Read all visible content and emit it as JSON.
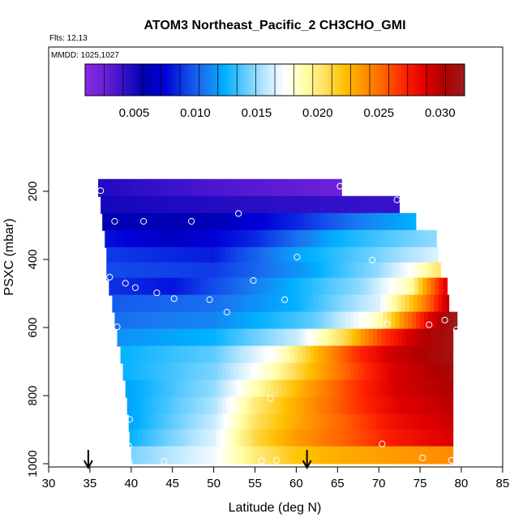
{
  "chart_data": {
    "type": "heatmap",
    "title": "ATOM3 Northeast_Pacific_2 CH3CHO_GMI",
    "flights_label": "Flts: 12,13",
    "date_label": "MMDD: 1025,1027",
    "xlabel": "Latitude (deg N)",
    "ylabel": "PSXC (mbar)",
    "xlim": [
      30,
      85
    ],
    "ylim": [
      1000,
      0
    ],
    "x_ticks": [
      "30",
      "35",
      "40",
      "45",
      "50",
      "55",
      "60",
      "65",
      "70",
      "75",
      "80",
      "85"
    ],
    "y_ticks": [
      "200",
      "400",
      "600",
      "800",
      "1000"
    ],
    "colorbar": {
      "range": [
        0.001,
        0.032
      ],
      "tick_values": [
        0.005,
        0.01,
        0.015,
        0.02,
        0.025,
        0.03
      ],
      "tick_labels": [
        "0.005",
        "0.010",
        "0.015",
        "0.020",
        "0.025",
        "0.030"
      ],
      "colors": [
        "#8a2be2",
        "#6a1fd8",
        "#3010c8",
        "#0000b0",
        "#0000d8",
        "#1040e8",
        "#1a78f0",
        "#00b0ff",
        "#60ccff",
        "#b8e6ff",
        "#ffffff",
        "#ffffa8",
        "#ffe060",
        "#ffc000",
        "#ff9000",
        "#ff6000",
        "#ff2000",
        "#e00000",
        "#b00000",
        "#9a1c1c"
      ]
    },
    "rows": [
      {
        "p": 190,
        "lat_start": 36.0,
        "lat_end": 65.5,
        "breaks": [
          [
            36,
            0.0048
          ],
          [
            50,
            0.0035
          ],
          [
            65.5,
            0.0025
          ]
        ]
      },
      {
        "p": 240,
        "lat_start": 36.3,
        "lat_end": 72.5,
        "breaks": [
          [
            36.3,
            0.0052
          ],
          [
            55,
            0.0045
          ],
          [
            72.5,
            0.004
          ]
        ]
      },
      {
        "p": 290,
        "lat_start": 36.5,
        "lat_end": 74.5,
        "breaks": [
          [
            36.5,
            0.006
          ],
          [
            50,
            0.0062
          ],
          [
            60,
            0.0085
          ],
          [
            68,
            0.011
          ],
          [
            74.5,
            0.0125
          ]
        ]
      },
      {
        "p": 340,
        "lat_start": 36.8,
        "lat_end": 77.0,
        "breaks": [
          [
            36.8,
            0.008
          ],
          [
            45,
            0.0065
          ],
          [
            55,
            0.0085
          ],
          [
            65,
            0.0125
          ],
          [
            77,
            0.015
          ]
        ]
      },
      {
        "p": 390,
        "lat_start": 37.0,
        "lat_end": 77.2,
        "breaks": [
          [
            37,
            0.009
          ],
          [
            50,
            0.0082
          ],
          [
            60,
            0.012
          ],
          [
            70,
            0.0145
          ],
          [
            77.2,
            0.0165
          ]
        ]
      },
      {
        "p": 435,
        "lat_start": 37.0,
        "lat_end": 77.5,
        "breaks": [
          [
            37,
            0.0095
          ],
          [
            50,
            0.009
          ],
          [
            60,
            0.0115
          ],
          [
            70,
            0.015
          ],
          [
            74,
            0.0175
          ],
          [
            77.5,
            0.0205
          ]
        ]
      },
      {
        "p": 480,
        "lat_start": 37.3,
        "lat_end": 78.3,
        "breaks": [
          [
            37.3,
            0.0088
          ],
          [
            45,
            0.008
          ],
          [
            55,
            0.011
          ],
          [
            68,
            0.015
          ],
          [
            74,
            0.019
          ],
          [
            76,
            0.024
          ],
          [
            78.3,
            0.029
          ]
        ]
      },
      {
        "p": 530,
        "lat_start": 37.7,
        "lat_end": 78.5,
        "breaks": [
          [
            37.7,
            0.01
          ],
          [
            50,
            0.0105
          ],
          [
            60,
            0.0125
          ],
          [
            70,
            0.0165
          ],
          [
            74,
            0.022
          ],
          [
            76.5,
            0.026
          ],
          [
            78.5,
            0.03
          ]
        ]
      },
      {
        "p": 580,
        "lat_start": 38.0,
        "lat_end": 79.5,
        "breaks": [
          [
            38,
            0.0105
          ],
          [
            50,
            0.0112
          ],
          [
            62,
            0.014
          ],
          [
            70,
            0.0185
          ],
          [
            73,
            0.024
          ],
          [
            76,
            0.0285
          ],
          [
            79.5,
            0.0325
          ]
        ]
      },
      {
        "p": 630,
        "lat_start": 38.3,
        "lat_end": 79.0,
        "breaks": [
          [
            38.3,
            0.0115
          ],
          [
            50,
            0.0125
          ],
          [
            60,
            0.016
          ],
          [
            66,
            0.021
          ],
          [
            70,
            0.026
          ],
          [
            75,
            0.03
          ],
          [
            79,
            0.0315
          ]
        ]
      },
      {
        "p": 680,
        "lat_start": 38.7,
        "lat_end": 79.0,
        "breaks": [
          [
            38.7,
            0.0125
          ],
          [
            50,
            0.014
          ],
          [
            58,
            0.018
          ],
          [
            63,
            0.023
          ],
          [
            67,
            0.0265
          ],
          [
            72,
            0.0295
          ],
          [
            79,
            0.0315
          ]
        ]
      },
      {
        "p": 730,
        "lat_start": 39.0,
        "lat_end": 79.0,
        "breaks": [
          [
            39,
            0.0125
          ],
          [
            50,
            0.0145
          ],
          [
            57,
            0.0185
          ],
          [
            62,
            0.0225
          ],
          [
            67,
            0.026
          ],
          [
            72,
            0.029
          ],
          [
            79,
            0.031
          ]
        ]
      },
      {
        "p": 780,
        "lat_start": 39.3,
        "lat_end": 79.0,
        "breaks": [
          [
            39.3,
            0.012
          ],
          [
            50,
            0.015
          ],
          [
            56,
            0.0195
          ],
          [
            61,
            0.023
          ],
          [
            66,
            0.026
          ],
          [
            72,
            0.029
          ],
          [
            79,
            0.0305
          ]
        ]
      },
      {
        "p": 830,
        "lat_start": 39.5,
        "lat_end": 79.0,
        "breaks": [
          [
            39.5,
            0.012
          ],
          [
            50,
            0.0155
          ],
          [
            55,
            0.02
          ],
          [
            61,
            0.0235
          ],
          [
            66,
            0.026
          ],
          [
            72,
            0.0285
          ],
          [
            79,
            0.03
          ]
        ]
      },
      {
        "p": 880,
        "lat_start": 39.7,
        "lat_end": 79.0,
        "breaks": [
          [
            39.7,
            0.012
          ],
          [
            50,
            0.016
          ],
          [
            55,
            0.0205
          ],
          [
            60,
            0.023
          ],
          [
            66,
            0.0255
          ],
          [
            72,
            0.028
          ],
          [
            79,
            0.0295
          ]
        ]
      },
      {
        "p": 925,
        "lat_start": 39.8,
        "lat_end": 79.0,
        "breaks": [
          [
            39.8,
            0.0125
          ],
          [
            50,
            0.0165
          ],
          [
            55,
            0.021
          ],
          [
            60,
            0.0235
          ],
          [
            66,
            0.0255
          ],
          [
            72,
            0.0275
          ],
          [
            79,
            0.029
          ]
        ]
      },
      {
        "p": 975,
        "lat_start": 40.0,
        "lat_end": 79.0,
        "breaks": [
          [
            40,
            0.0145
          ],
          [
            50,
            0.017
          ],
          [
            55,
            0.02
          ],
          [
            60,
            0.022
          ],
          [
            66,
            0.023
          ],
          [
            72,
            0.0235
          ],
          [
            79,
            0.024
          ]
        ]
      }
    ],
    "points": [
      {
        "lat": 36.3,
        "p": 198
      },
      {
        "lat": 65.3,
        "p": 185
      },
      {
        "lat": 72.2,
        "p": 225
      },
      {
        "lat": 38.0,
        "p": 288
      },
      {
        "lat": 41.5,
        "p": 288
      },
      {
        "lat": 47.3,
        "p": 288
      },
      {
        "lat": 53.0,
        "p": 265
      },
      {
        "lat": 60.1,
        "p": 393
      },
      {
        "lat": 69.2,
        "p": 402
      },
      {
        "lat": 37.4,
        "p": 452
      },
      {
        "lat": 39.3,
        "p": 470
      },
      {
        "lat": 40.5,
        "p": 483
      },
      {
        "lat": 43.1,
        "p": 498
      },
      {
        "lat": 45.2,
        "p": 515
      },
      {
        "lat": 49.5,
        "p": 518
      },
      {
        "lat": 54.8,
        "p": 462
      },
      {
        "lat": 58.6,
        "p": 518
      },
      {
        "lat": 74.2,
        "p": 443
      },
      {
        "lat": 51.6,
        "p": 555
      },
      {
        "lat": 38.3,
        "p": 598
      },
      {
        "lat": 71.0,
        "p": 590
      },
      {
        "lat": 76.1,
        "p": 592
      },
      {
        "lat": 78.0,
        "p": 578
      },
      {
        "lat": 79.4,
        "p": 607
      },
      {
        "lat": 56.9,
        "p": 808
      },
      {
        "lat": 39.8,
        "p": 870
      },
      {
        "lat": 70.4,
        "p": 942
      },
      {
        "lat": 39.7,
        "p": 948
      },
      {
        "lat": 39.8,
        "p": 995
      },
      {
        "lat": 44.0,
        "p": 993
      },
      {
        "lat": 50.7,
        "p": 988
      },
      {
        "lat": 55.8,
        "p": 992
      },
      {
        "lat": 57.6,
        "p": 990
      },
      {
        "lat": 75.3,
        "p": 983
      },
      {
        "lat": 78.8,
        "p": 990
      }
    ],
    "arrows": [
      34.8,
      61.3
    ]
  }
}
